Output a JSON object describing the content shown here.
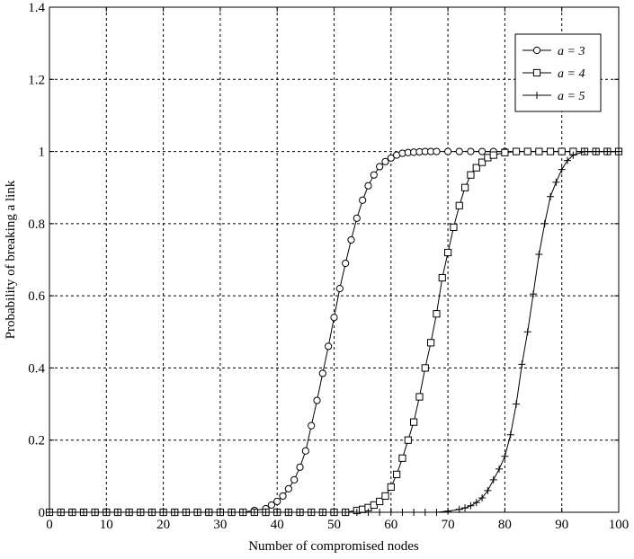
{
  "chart_data": {
    "type": "line",
    "xlabel": "Number of compromised nodes",
    "ylabel": "Probability of breaking a link",
    "xlim": [
      0,
      100
    ],
    "ylim": [
      0,
      1.4
    ],
    "xticks": [
      "0",
      "10",
      "20",
      "30",
      "40",
      "50",
      "60",
      "70",
      "80",
      "90",
      "100"
    ],
    "yticks": [
      "0",
      "0.2",
      "0.4",
      "0.6",
      "0.8",
      "1",
      "1.2",
      "1.4"
    ],
    "grid": true,
    "legend_position": "top-right",
    "series": [
      {
        "name": "a = 3",
        "marker": "circle",
        "x": [
          0,
          2,
          4,
          6,
          8,
          10,
          12,
          14,
          16,
          18,
          20,
          22,
          24,
          26,
          28,
          30,
          32,
          34,
          36,
          38,
          39,
          40,
          41,
          42,
          43,
          44,
          45,
          46,
          47,
          48,
          49,
          50,
          51,
          52,
          53,
          54,
          55,
          56,
          57,
          58,
          59,
          60,
          61,
          62,
          63,
          64,
          65,
          66,
          67,
          68,
          70,
          72,
          74,
          76,
          78,
          80,
          82,
          84,
          86,
          88,
          90,
          92,
          94,
          96,
          98,
          100
        ],
        "values": [
          0,
          0,
          0,
          0,
          0,
          0,
          0,
          0,
          0,
          0,
          0,
          0,
          0,
          0,
          0,
          0,
          0,
          0,
          0.005,
          0.01,
          0.02,
          0.03,
          0.045,
          0.065,
          0.09,
          0.125,
          0.17,
          0.24,
          0.31,
          0.385,
          0.46,
          0.54,
          0.62,
          0.69,
          0.755,
          0.815,
          0.865,
          0.905,
          0.935,
          0.958,
          0.972,
          0.982,
          0.99,
          0.995,
          0.997,
          0.998,
          0.999,
          1,
          1,
          1,
          1,
          1,
          1,
          1,
          1,
          1,
          1,
          1,
          1,
          1,
          1,
          1,
          1,
          1,
          1,
          1
        ]
      },
      {
        "name": "a = 4",
        "marker": "square",
        "x": [
          0,
          2,
          4,
          6,
          8,
          10,
          12,
          14,
          16,
          18,
          20,
          22,
          24,
          26,
          28,
          30,
          32,
          34,
          36,
          38,
          40,
          42,
          44,
          46,
          48,
          50,
          52,
          54,
          55,
          56,
          57,
          58,
          59,
          60,
          61,
          62,
          63,
          64,
          65,
          66,
          67,
          68,
          69,
          70,
          71,
          72,
          73,
          74,
          75,
          76,
          77,
          78,
          80,
          82,
          84,
          86,
          88,
          90,
          92,
          94,
          96,
          98,
          100
        ],
        "values": [
          0,
          0,
          0,
          0,
          0,
          0,
          0,
          0,
          0,
          0,
          0,
          0,
          0,
          0,
          0,
          0,
          0,
          0,
          0,
          0,
          0,
          0,
          0,
          0,
          0,
          0,
          0,
          0.005,
          0.008,
          0.013,
          0.02,
          0.03,
          0.045,
          0.07,
          0.105,
          0.15,
          0.2,
          0.25,
          0.32,
          0.4,
          0.47,
          0.55,
          0.65,
          0.72,
          0.79,
          0.85,
          0.9,
          0.935,
          0.955,
          0.97,
          0.983,
          0.99,
          0.997,
          1,
          1,
          1,
          1,
          1,
          1,
          1,
          1,
          1,
          1
        ]
      },
      {
        "name": "a = 5",
        "marker": "plus",
        "x": [
          0,
          2,
          4,
          6,
          8,
          10,
          12,
          14,
          16,
          18,
          20,
          22,
          24,
          26,
          28,
          30,
          32,
          34,
          36,
          38,
          40,
          42,
          44,
          46,
          48,
          50,
          52,
          54,
          56,
          58,
          60,
          62,
          64,
          66,
          68,
          70,
          72,
          73,
          74,
          75,
          76,
          77,
          78,
          79,
          80,
          81,
          82,
          83,
          84,
          85,
          86,
          87,
          88,
          89,
          90,
          91,
          92,
          94,
          96,
          98,
          100
        ],
        "values": [
          0,
          0,
          0,
          0,
          0,
          0,
          0,
          0,
          0,
          0,
          0,
          0,
          0,
          0,
          0,
          0,
          0,
          0,
          0,
          0,
          0,
          0,
          0,
          0,
          0,
          0,
          0,
          0,
          0,
          0,
          0,
          0,
          0,
          0,
          0,
          0.003,
          0.008,
          0.012,
          0.018,
          0.027,
          0.04,
          0.06,
          0.09,
          0.12,
          0.155,
          0.215,
          0.3,
          0.41,
          0.5,
          0.605,
          0.715,
          0.8,
          0.875,
          0.915,
          0.95,
          0.975,
          0.99,
          1,
          1,
          1,
          1
        ]
      }
    ]
  }
}
